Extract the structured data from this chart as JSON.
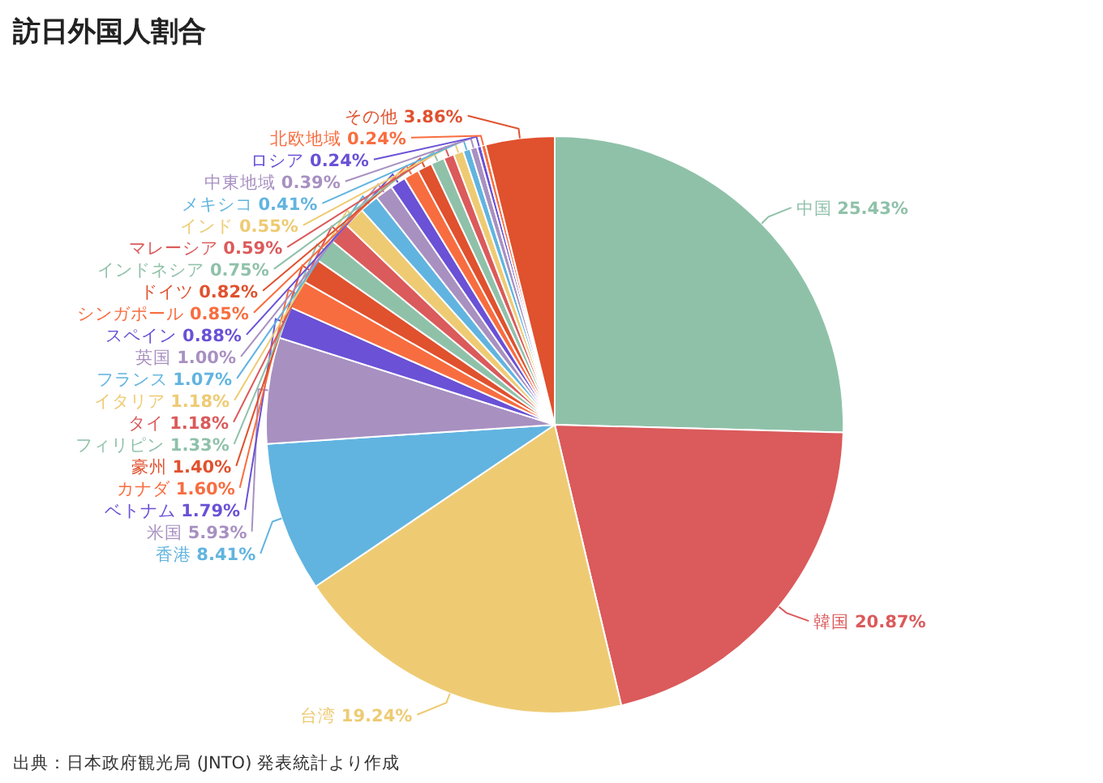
{
  "chart_data": {
    "type": "pie",
    "title": "訪日外国人割合",
    "categories": [
      "中国",
      "韓国",
      "台湾",
      "香港",
      "米国",
      "ベトナム",
      "カナダ",
      "豪州",
      "フィリピン",
      "タイ",
      "イタリア",
      "フランス",
      "英国",
      "スペイン",
      "シンガポール",
      "ドイツ",
      "インドネシア",
      "マレーシア",
      "インド",
      "メキシコ",
      "中東地域",
      "ロシア",
      "北欧地域",
      "その他"
    ],
    "values": [
      25.43,
      20.87,
      19.24,
      8.41,
      5.93,
      1.79,
      1.6,
      1.4,
      1.33,
      1.18,
      1.18,
      1.07,
      1.0,
      0.88,
      0.85,
      0.82,
      0.75,
      0.59,
      0.55,
      0.41,
      0.39,
      0.24,
      0.24,
      3.86
    ],
    "value_labels": [
      "25.43%",
      "20.87%",
      "19.24%",
      "8.41%",
      "5.93%",
      "1.79%",
      "1.60%",
      "1.40%",
      "1.33%",
      "1.18%",
      "1.18%",
      "1.07%",
      "1.00%",
      "0.88%",
      "0.85%",
      "0.82%",
      "0.75%",
      "0.59%",
      "0.55%",
      "0.41%",
      "0.39%",
      "0.24%",
      "0.24%",
      "3.86%"
    ],
    "colors": [
      "#8fc1a9",
      "#db5a5b",
      "#eecb73",
      "#61b4e0",
      "#a890c1",
      "#6a51d6",
      "#f86d3f",
      "#e0512e",
      "#8fc1a9",
      "#db5a5b",
      "#eecb73",
      "#61b4e0",
      "#a890c1",
      "#6a51d6",
      "#f86d3f",
      "#e0512e",
      "#8fc1a9",
      "#db5a5b",
      "#eecb73",
      "#61b4e0",
      "#a890c1",
      "#6a51d6",
      "#f86d3f",
      "#e0512e"
    ],
    "annotations": [
      "出典：日本政府観光局 (JNTO) 発表統計より作成"
    ]
  }
}
